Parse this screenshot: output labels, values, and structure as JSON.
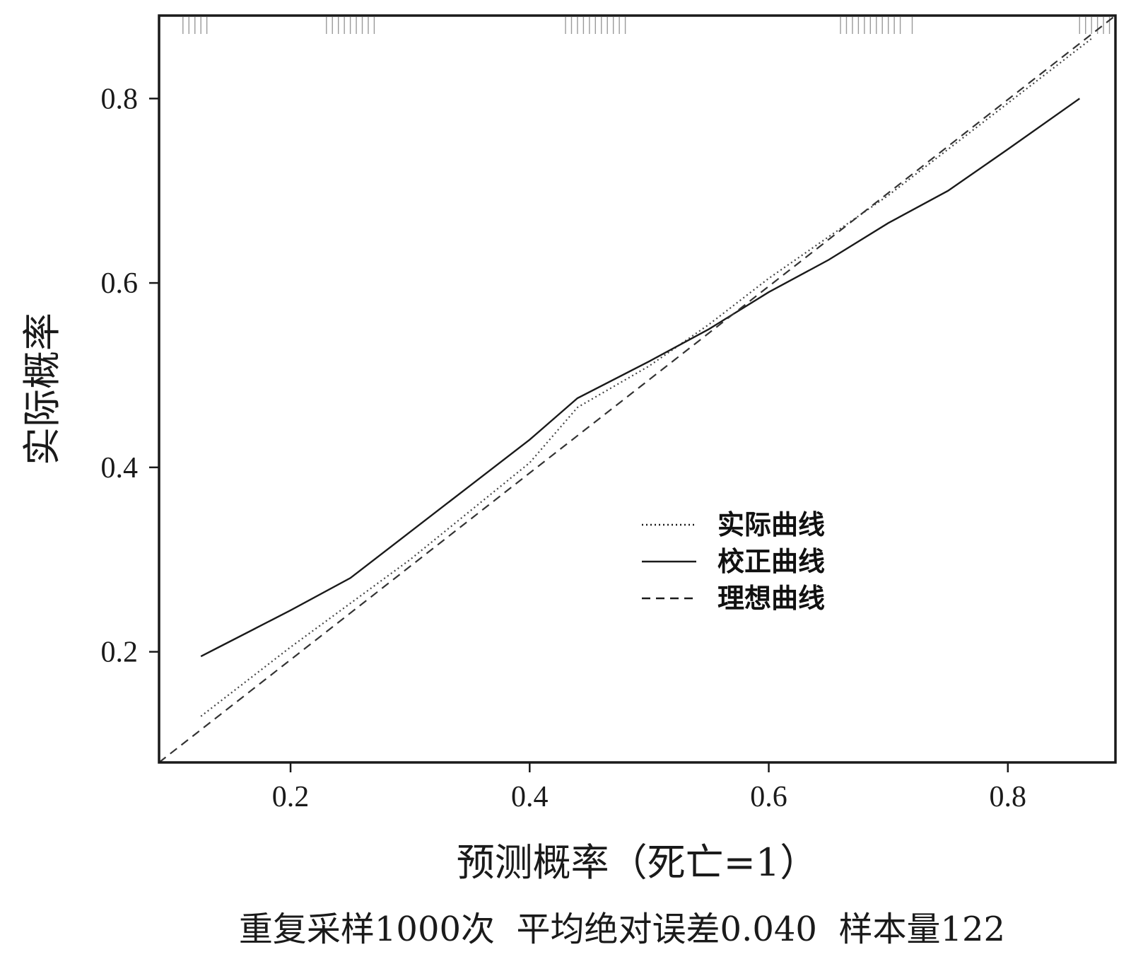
{
  "chart_data": {
    "type": "line",
    "xlabel": "预测概率（死亡=1）",
    "ylabel": "实际概率",
    "caption": "重复采样1000次  平均绝对误差0.040  样本量122",
    "xlim": [
      0.09,
      0.89
    ],
    "ylim": [
      0.08,
      0.89
    ],
    "x_ticks": [
      0.2,
      0.4,
      0.6,
      0.8
    ],
    "y_ticks": [
      0.2,
      0.4,
      0.6,
      0.8
    ],
    "x_tick_labels": [
      "0.2",
      "0.4",
      "0.6",
      "0.8"
    ],
    "y_tick_labels": [
      "0.2",
      "0.4",
      "0.6",
      "0.8"
    ],
    "grid": false,
    "legend": {
      "placement": "center-right",
      "entries": [
        {
          "label": "实际曲线",
          "style": "dotted"
        },
        {
          "label": "校正曲线",
          "style": "solid"
        },
        {
          "label": "理想曲线",
          "style": "dashed"
        }
      ]
    },
    "series": [
      {
        "name": "实际曲线",
        "style": "dotted",
        "color": "#444444",
        "points": [
          [
            0.125,
            0.13
          ],
          [
            0.2,
            0.205
          ],
          [
            0.3,
            0.3
          ],
          [
            0.4,
            0.405
          ],
          [
            0.44,
            0.465
          ],
          [
            0.5,
            0.51
          ],
          [
            0.55,
            0.555
          ],
          [
            0.6,
            0.605
          ],
          [
            0.7,
            0.695
          ],
          [
            0.8,
            0.795
          ],
          [
            0.87,
            0.865
          ]
        ]
      },
      {
        "name": "校正曲线",
        "style": "solid",
        "color": "#1a1a1a",
        "points": [
          [
            0.125,
            0.195
          ],
          [
            0.14,
            0.205
          ],
          [
            0.17,
            0.225
          ],
          [
            0.2,
            0.245
          ],
          [
            0.25,
            0.28
          ],
          [
            0.3,
            0.33
          ],
          [
            0.35,
            0.38
          ],
          [
            0.4,
            0.43
          ],
          [
            0.44,
            0.475
          ],
          [
            0.5,
            0.515
          ],
          [
            0.55,
            0.55
          ],
          [
            0.6,
            0.59
          ],
          [
            0.65,
            0.625
          ],
          [
            0.7,
            0.665
          ],
          [
            0.75,
            0.7
          ],
          [
            0.8,
            0.745
          ],
          [
            0.86,
            0.8
          ]
        ]
      },
      {
        "name": "理想曲线",
        "style": "dashed",
        "color": "#333333",
        "points": [
          [
            0.09,
            0.08
          ],
          [
            0.89,
            0.89
          ]
        ]
      }
    ],
    "rug_x": [
      0.11,
      0.115,
      0.12,
      0.125,
      0.13,
      0.23,
      0.235,
      0.24,
      0.245,
      0.25,
      0.255,
      0.26,
      0.265,
      0.27,
      0.43,
      0.435,
      0.44,
      0.445,
      0.45,
      0.455,
      0.46,
      0.465,
      0.47,
      0.475,
      0.48,
      0.66,
      0.665,
      0.67,
      0.675,
      0.68,
      0.685,
      0.69,
      0.695,
      0.7,
      0.705,
      0.71,
      0.72,
      0.86,
      0.865,
      0.87,
      0.875,
      0.88,
      0.885
    ]
  }
}
